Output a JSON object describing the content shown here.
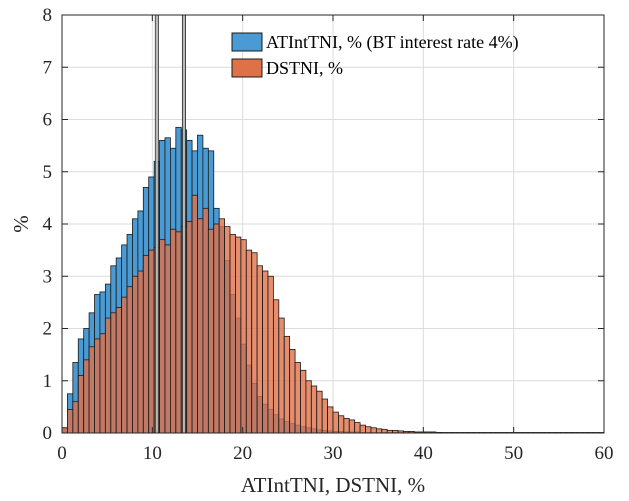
{
  "chart_data": {
    "type": "bar",
    "subtype": "overlaid-histogram",
    "title": "",
    "xlabel": "ATIntTNI, DSTNI, %",
    "ylabel": "%",
    "xlim": [
      0,
      60
    ],
    "ylim": [
      0,
      8
    ],
    "xticks": [
      0,
      10,
      20,
      30,
      40,
      50,
      60
    ],
    "yticks": [
      0,
      1,
      2,
      3,
      4,
      5,
      6,
      7,
      8
    ],
    "grid": true,
    "legend_position": "top-right",
    "bin_width": 0.6,
    "bin_start": 0,
    "vertical_lines_x": [
      10.5,
      13.5
    ],
    "series": [
      {
        "name": "ATIntTNI, % (BT interest rate 4%)",
        "color": "#4a9bd4",
        "values": [
          0.1,
          0.75,
          1.35,
          1.8,
          2.0,
          2.3,
          2.65,
          2.7,
          2.85,
          3.2,
          3.35,
          3.6,
          3.8,
          4.1,
          4.25,
          4.7,
          4.9,
          5.2,
          5.6,
          5.65,
          5.45,
          5.85,
          5.8,
          5.6,
          5.4,
          5.7,
          5.45,
          5.4,
          4.3,
          3.95,
          3.3,
          2.65,
          2.2,
          1.7,
          1.3,
          0.95,
          0.7,
          0.55,
          0.45,
          0.35,
          0.27,
          0.22,
          0.18,
          0.15,
          0.12,
          0.1,
          0.08,
          0.06,
          0.05,
          0.04,
          0.03,
          0.03,
          0.02,
          0.02,
          0.02,
          0.01,
          0.01,
          0.01,
          0.01,
          0.01,
          0.01,
          0.01,
          0.01,
          0.01,
          0.01,
          0.01,
          0.01,
          0.01,
          0.01,
          0.01
        ]
      },
      {
        "name": "DSTNI, %",
        "color": "#de7148",
        "values": [
          0.1,
          0.45,
          0.6,
          1.1,
          1.4,
          1.65,
          1.8,
          1.9,
          2.2,
          2.3,
          2.4,
          2.6,
          2.8,
          3.0,
          3.1,
          3.4,
          3.5,
          3.55,
          3.7,
          3.6,
          3.9,
          3.85,
          3.95,
          4.05,
          4.55,
          4.1,
          4.3,
          3.9,
          4.0,
          4.1,
          3.95,
          3.8,
          3.75,
          3.7,
          3.5,
          3.45,
          3.2,
          3.1,
          3.0,
          2.55,
          2.2,
          1.85,
          1.6,
          1.35,
          1.2,
          1.0,
          0.9,
          0.8,
          0.65,
          0.5,
          0.4,
          0.33,
          0.28,
          0.25,
          0.2,
          0.15,
          0.12,
          0.1,
          0.08,
          0.07,
          0.05,
          0.05,
          0.04,
          0.03,
          0.03,
          0.02,
          0.02,
          0.02,
          0.02,
          0.01,
          0.01,
          0.01,
          0.01,
          0.01,
          0.01,
          0.01,
          0.01,
          0.01,
          0.01,
          0.01,
          0.01,
          0.01,
          0.01,
          0.01,
          0.01,
          0.01,
          0.01,
          0.01,
          0.01,
          0.01,
          0.01,
          0.01,
          0.01,
          0.01,
          0.01,
          0.01,
          0.01,
          0.01,
          0.01,
          0.01
        ]
      }
    ]
  }
}
